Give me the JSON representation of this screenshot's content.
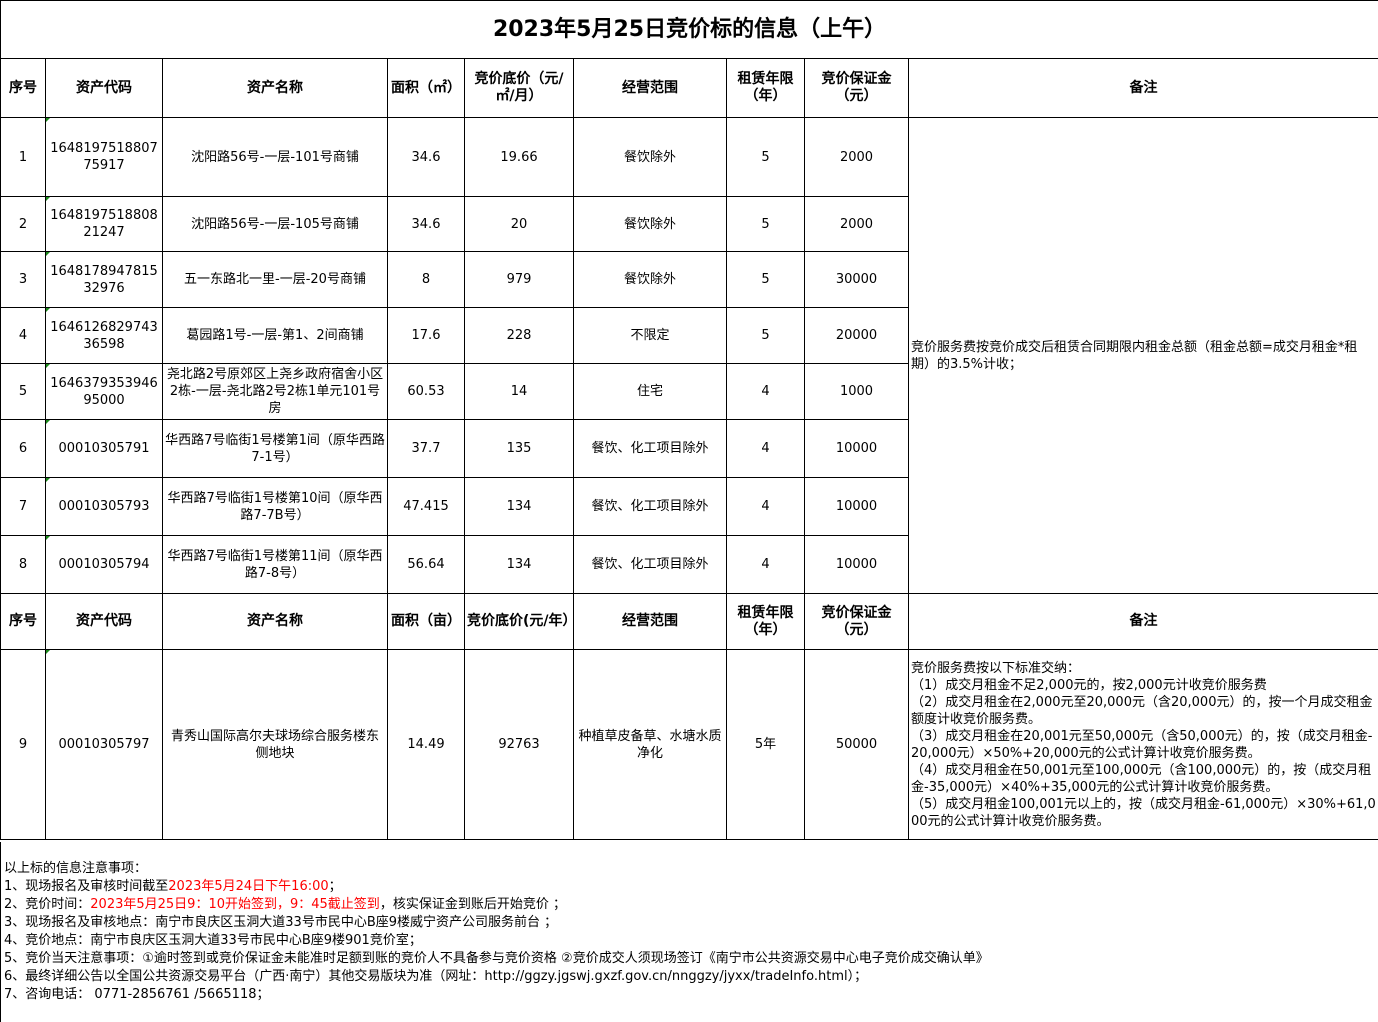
{
  "title": "2023年5月25日竞价标的信息（上午）",
  "header1": [
    "序号",
    "资产代码",
    "资产名称",
    "面积（㎡）",
    "竞价底价（元/㎡/月）",
    "经营范围",
    "租赁年限（年）",
    "竞价保证金（元）",
    "备注"
  ],
  "rows1": [
    {
      "no": "1",
      "code": "164819751880775917",
      "name": "沈阳路56号-一层-101号商铺",
      "area": "34.6",
      "price": "19.66",
      "scope": "餐饮除外",
      "years": "5",
      "deposit": "2000"
    },
    {
      "no": "2",
      "code": "164819751880821247",
      "name": "沈阳路56号-一层-105号商铺",
      "area": "34.6",
      "price": "20",
      "scope": "餐饮除外",
      "years": "5",
      "deposit": "2000"
    },
    {
      "no": "3",
      "code": "164817894781532976",
      "name": "五一东路北一里-一层-20号商铺",
      "area": "8",
      "price": "979",
      "scope": "餐饮除外",
      "years": "5",
      "deposit": "30000"
    },
    {
      "no": "4",
      "code": "164612682974336598",
      "name": "葛园路1号-一层-第1、2间商铺",
      "area": "17.6",
      "price": "228",
      "scope": "不限定",
      "years": "5",
      "deposit": "20000"
    },
    {
      "no": "5",
      "code": "164637935394695000",
      "name": "尧北路2号原郊区上尧乡政府宿舍小区2栋-一层-尧北路2号2栋1单元101号房",
      "area": "60.53",
      "price": "14",
      "scope": "住宅",
      "years": "4",
      "deposit": "1000"
    },
    {
      "no": "6",
      "code": "00010305791",
      "name": "华西路7号临街1号楼第1间（原华西路7-1号）",
      "area": "37.7",
      "price": "135",
      "scope": "餐饮、化工项目除外",
      "years": "4",
      "deposit": "10000"
    },
    {
      "no": "7",
      "code": "00010305793",
      "name": "华西路7号临街1号楼第10间（原华西路7-7B号）",
      "area": "47.415",
      "price": "134",
      "scope": "餐饮、化工项目除外",
      "years": "4",
      "deposit": "10000"
    },
    {
      "no": "8",
      "code": "00010305794",
      "name": "华西路7号临街1号楼第11间（原华西路7-8号）",
      "area": "56.64",
      "price": "134",
      "scope": "餐饮、化工项目除外",
      "years": "4",
      "deposit": "10000"
    }
  ],
  "remark1": "竞价服务费按竞价成交后租赁合同期限内租金总额（租金总额=成交月租金*租期）的3.5%计收；",
  "header2": [
    "序号",
    "资产代码",
    "资产名称",
    "面积（亩）",
    "竞价底价(元/年）",
    "经营范围",
    "租赁年限（年）",
    "竞价保证金（元）",
    "备注"
  ],
  "row9": {
    "no": "9",
    "code": "00010305797",
    "name": "青秀山国际高尔夫球场综合服务楼东侧地块",
    "area": "14.49",
    "price": "92763",
    "scope": "种植草皮备草、水塘水质净化",
    "years": "5年",
    "deposit": "50000"
  },
  "remark2": [
    "竞价服务费按以下标准交纳：",
    "（1）成交月租金不足2,000元的，按2,000元计收竞价服务费",
    "（2）成交月租金在2,000元至20,000元（含20,000元）的，按一个月成交租金额度计收竞价服务费。",
    "（3）成交月租金在20,001元至50,000元（含50,000元）的，按（成交月租金-20,000元）×50%+20,000元的公式计算计收竞价服务费。",
    "（4）成交月租金在50,001元至100,000元（含100,000元）的，按（成交月租金-35,000元）×40%+35,000元的公式计算计收竞价服务费。",
    "（5）成交月租金100,001元以上的，按（成交月租金-61,000元）×30%+61,000元的公式计算计收竞价服务费。"
  ],
  "notes": {
    "heading": "以上标的信息注意事项：",
    "n1a": "1、现场报名及审核时间截至",
    "n1b": "2023年5月24日下午16:00",
    "n1c": "；",
    "n2a": "2、竞价时间：",
    "n2b": "2023年5月25日9：10开始签到，9：45截止签到",
    "n2c": "，核实保证金到账后开始竞价 ；",
    "n3": "3、现场报名及审核地点：南宁市良庆区玉洞大道33号市民中心B座9楼威宁资产公司服务前台 ；",
    "n4": "4、竞价地点：南宁市良庆区玉洞大道33号市民中心B座9楼901竞价室；",
    "n5": "5、竞价当天注意事项：①逾时签到或竞价保证金未能准时足额到账的竞价人不具备参与竞价资格 ②竞价成交人须现场签订《南宁市公共资源交易中心电子竞价成交确认单》",
    "n6": "6、最终详细公告以全国公共资源交易平台（广西·南宁）其他交易版块为准（网址：http://ggzy.jgswj.gxzf.gov.cn/nnggzy/jyxx/tradeInfo.html）；",
    "n7": "7、咨询电话： 0771-2856761 /5665118；"
  },
  "colors": {
    "highlight": "#ff0000",
    "cell_marker": "#1a8a1a"
  }
}
